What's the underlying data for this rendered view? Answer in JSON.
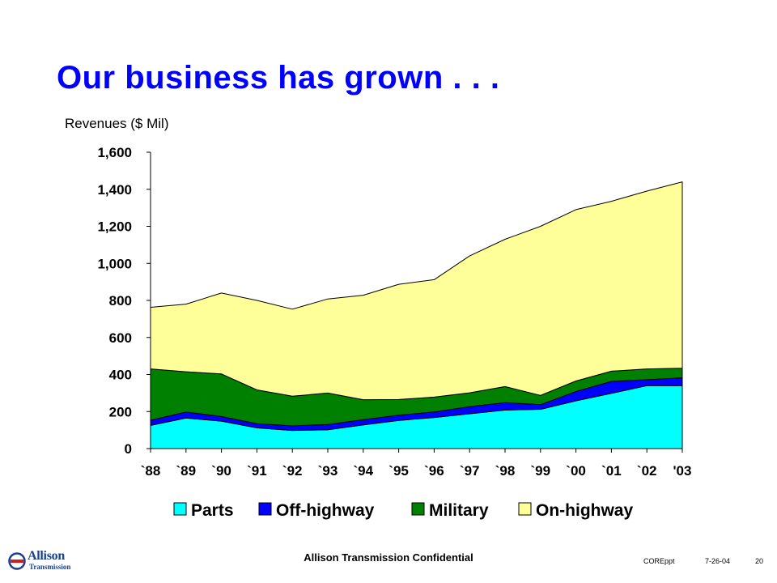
{
  "slide": {
    "title": "Our business has grown . . .",
    "footer_center": "Allison Transmission Confidential",
    "footer_file": "COREppt",
    "footer_date": "7-26-04",
    "footer_page": "20",
    "logo_text": "Allison",
    "logo_subtext": "Transmission"
  },
  "chart_data": {
    "type": "area",
    "stacked": true,
    "title": "",
    "ylabel": "Revenues ($ Mil)",
    "xlabel": "",
    "categories": [
      "`88",
      "`89",
      "`90",
      "`91",
      "`92",
      "`93",
      "`94",
      "`95",
      "`96",
      "`97",
      "`98",
      "`99",
      "`00",
      "`01",
      "`02",
      "'03"
    ],
    "ylim": [
      0,
      1600
    ],
    "yticks": [
      0,
      200,
      400,
      600,
      800,
      1000,
      1200,
      1400,
      1600
    ],
    "ytick_labels": [
      "0",
      "200",
      "400",
      "600",
      "800",
      "1,000",
      "1,200",
      "1,400",
      "1,600"
    ],
    "grid": false,
    "legend_position": "bottom",
    "series": [
      {
        "name": "Parts",
        "color": "#00FFFF",
        "values": [
          125,
          165,
          148,
          112,
          98,
          102,
          128,
          152,
          168,
          188,
          208,
          212,
          258,
          298,
          340,
          340
        ]
      },
      {
        "name": "Off-highway",
        "color": "#0000FF",
        "values": [
          28,
          32,
          25,
          22,
          25,
          28,
          28,
          28,
          30,
          38,
          40,
          25,
          50,
          65,
          32,
          42
        ]
      },
      {
        "name": "Military",
        "color": "#008000",
        "values": [
          277,
          218,
          230,
          183,
          160,
          170,
          108,
          85,
          80,
          75,
          87,
          50,
          57,
          55,
          58,
          52
        ]
      },
      {
        "name": "On-highway",
        "color": "#FFFF99",
        "values": [
          333,
          365,
          437,
          483,
          470,
          508,
          564,
          622,
          634,
          739,
          795,
          913,
          925,
          917,
          960,
          1006
        ]
      }
    ]
  }
}
